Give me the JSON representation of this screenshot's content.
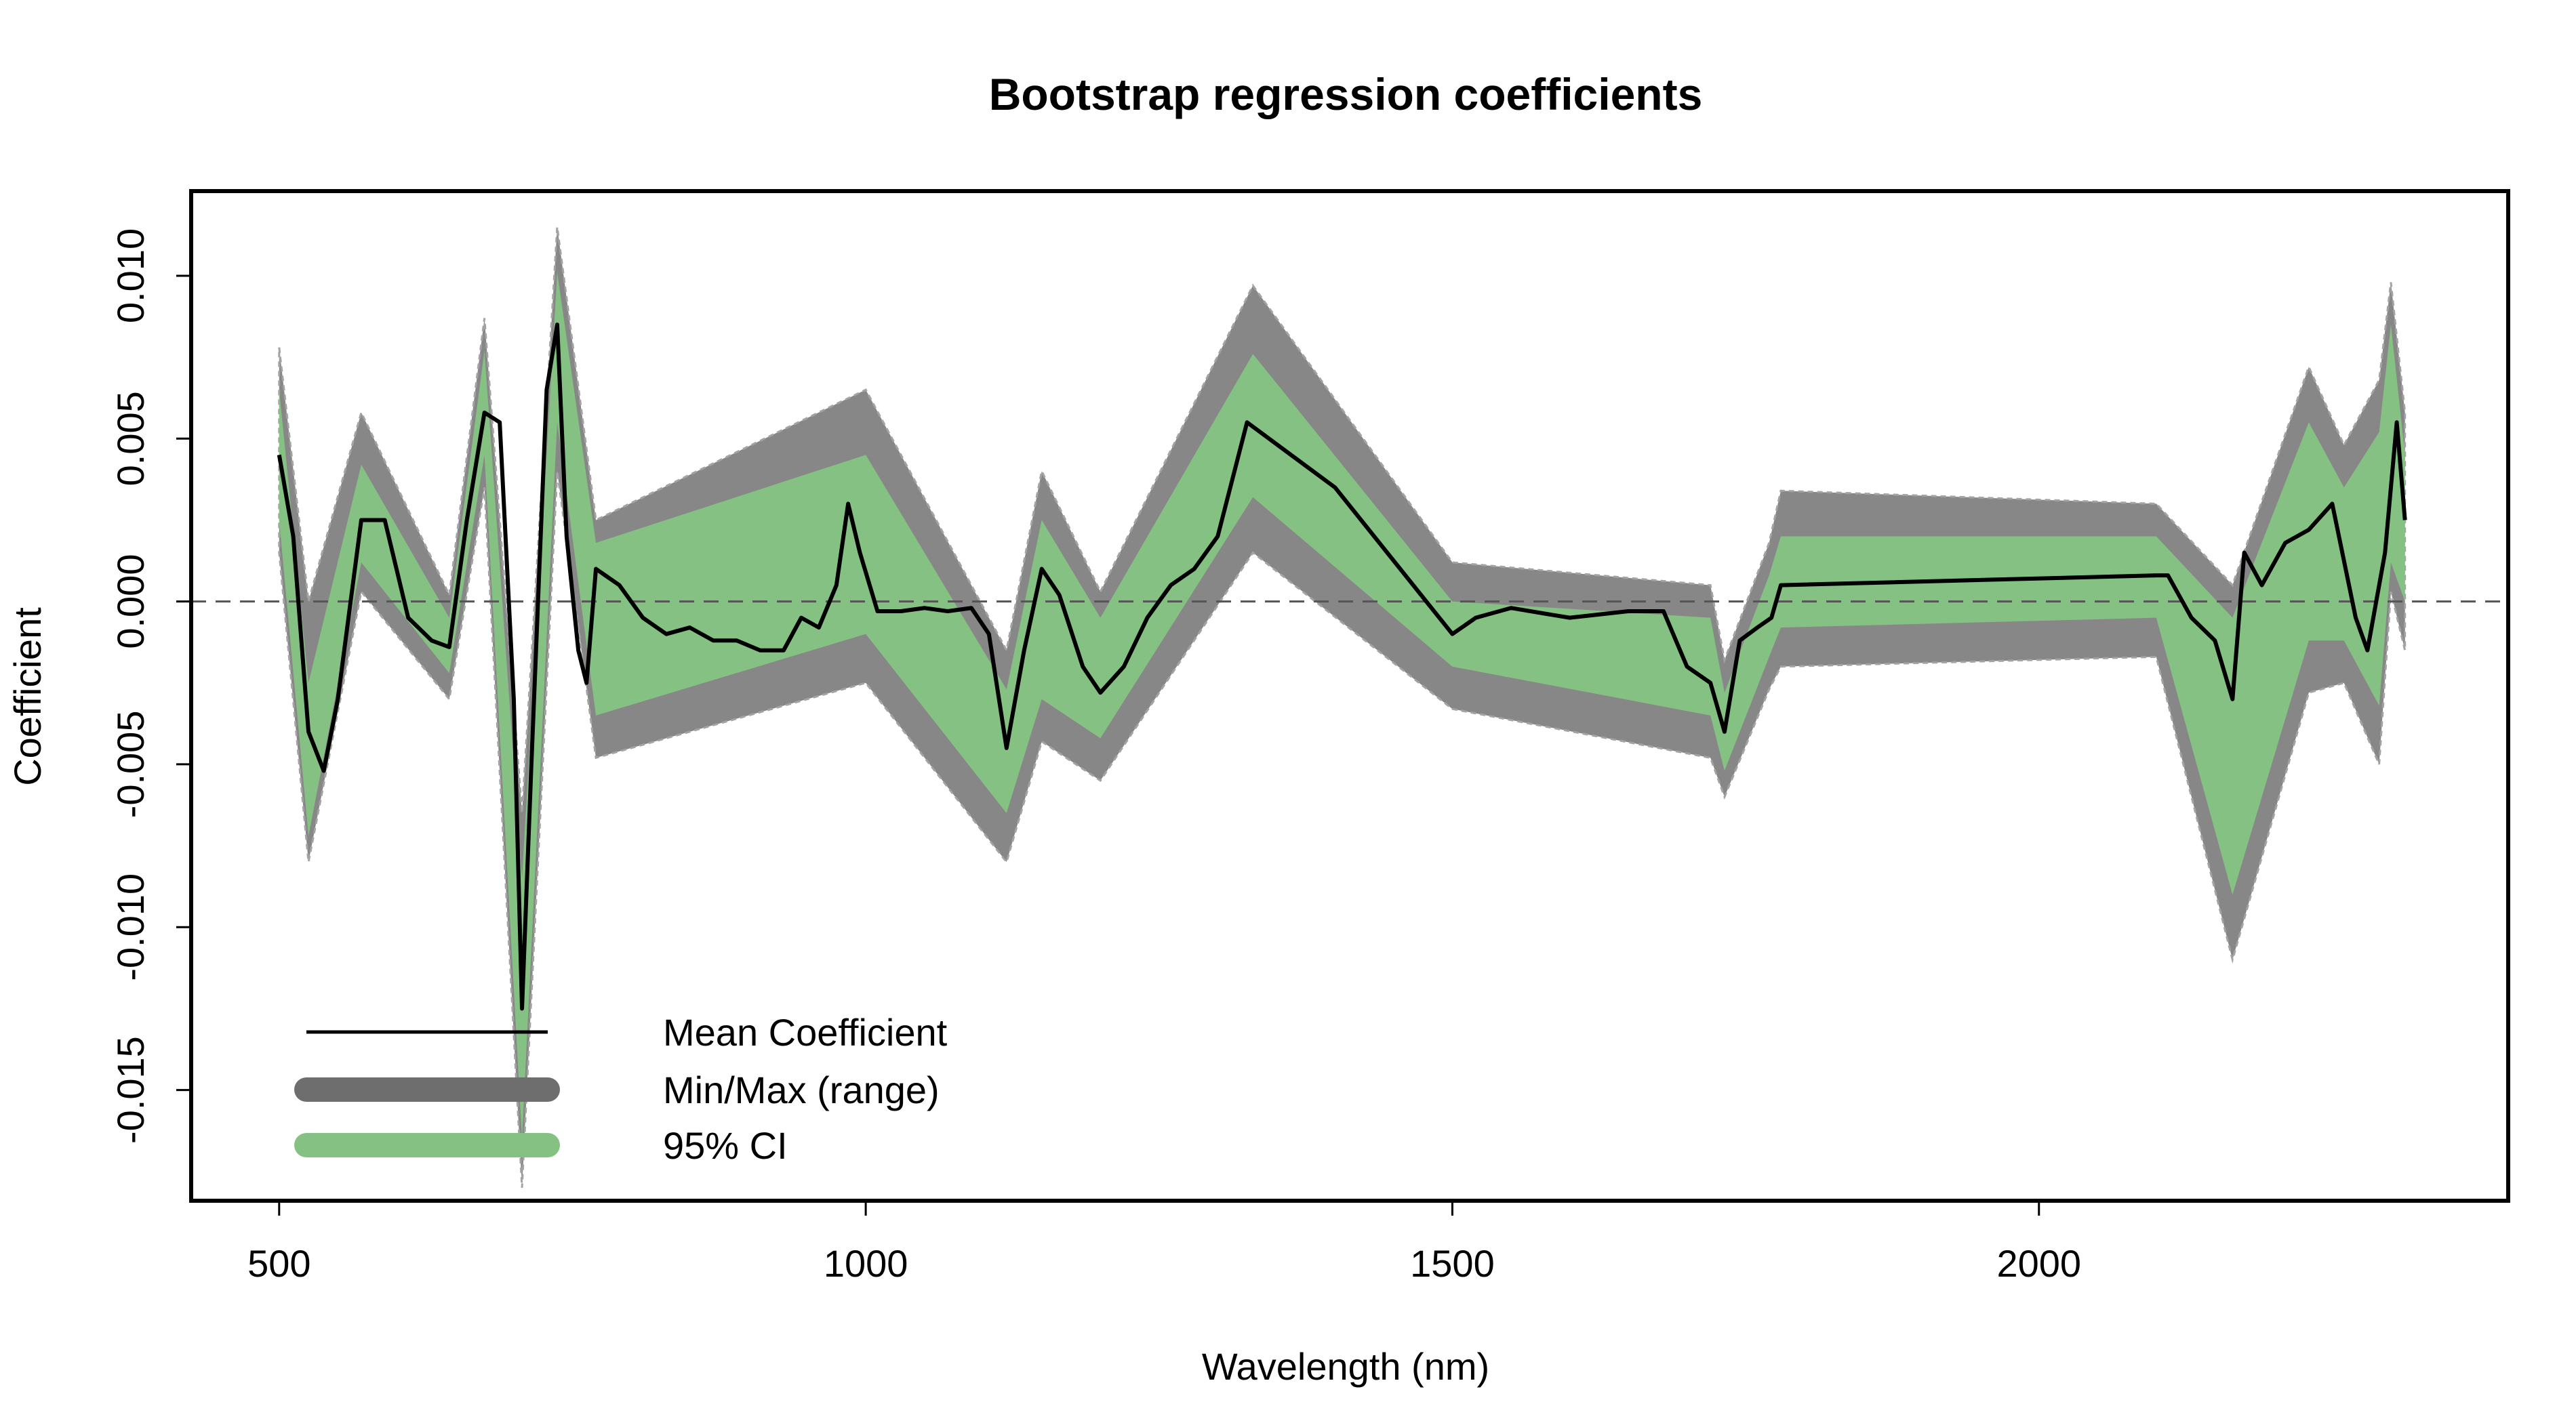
{
  "chart_data": {
    "type": "area",
    "title": "Bootstrap regression coefficients",
    "xlabel": "Wavelength (nm)",
    "ylabel": "Coefficient",
    "xlim": [
      425,
      2400
    ],
    "ylim": [
      -0.0184,
      0.0126
    ],
    "x_ticks": [
      500,
      1000,
      1500,
      2000
    ],
    "x_tick_labels": [
      "500",
      "1000",
      "1500",
      "2000"
    ],
    "y_ticks": [
      -0.015,
      -0.01,
      -0.005,
      0.0,
      0.005,
      0.01
    ],
    "y_tick_labels": [
      "-0.015",
      "-0.010",
      "-0.005",
      "0.000",
      "0.005",
      "0.010"
    ],
    "reference_line": {
      "y": 0,
      "style": "dashed"
    },
    "grid": false,
    "legend_position": "bottom-left",
    "colors": {
      "mean": "#000000",
      "range": "#878787",
      "range_edge": "#a3a3a3",
      "ci": "#86c184",
      "legend_range": "#6e6e6e"
    },
    "series": [
      {
        "name": "Mean Coefficient",
        "kind": "line",
        "x": [
          500,
          512,
          525,
          538,
          550,
          570,
          590,
          610,
          630,
          645,
          660,
          675,
          688,
          700,
          707,
          715,
          728,
          737,
          745,
          755,
          762,
          770,
          790,
          810,
          830,
          850,
          870,
          890,
          910,
          930,
          945,
          960,
          975,
          985,
          995,
          1010,
          1030,
          1050,
          1070,
          1090,
          1105,
          1120,
          1135,
          1150,
          1165,
          1185,
          1200,
          1220,
          1240,
          1260,
          1280,
          1300,
          1325,
          1400,
          1500,
          1520,
          1550,
          1600,
          1650,
          1680,
          1700,
          1720,
          1732,
          1745,
          1760,
          1772,
          1780,
          2100,
          2110,
          2130,
          2150,
          2165,
          2175,
          2190,
          2210,
          2230,
          2250,
          2270,
          2280,
          2295,
          2305,
          2312
        ],
        "y": [
          0.0045,
          0.002,
          -0.004,
          -0.0052,
          -0.003,
          0.0025,
          0.0025,
          -0.0005,
          -0.0012,
          -0.0014,
          0.0025,
          0.0058,
          0.0055,
          -0.003,
          -0.0125,
          -0.005,
          0.0065,
          0.0085,
          0.002,
          -0.0015,
          -0.0025,
          0.001,
          0.0005,
          -0.0005,
          -0.001,
          -0.0008,
          -0.0012,
          -0.0012,
          -0.0015,
          -0.0015,
          -0.0005,
          -0.0008,
          0.0005,
          0.003,
          0.0015,
          -0.0003,
          -0.0003,
          -0.0002,
          -0.0003,
          -0.0002,
          -0.001,
          -0.0045,
          -0.0015,
          0.001,
          0.0002,
          -0.002,
          -0.0028,
          -0.002,
          -0.0005,
          0.0005,
          0.001,
          0.002,
          0.0055,
          0.0035,
          -0.001,
          -0.0005,
          -0.0002,
          -0.0005,
          -0.0003,
          -0.0003,
          -0.002,
          -0.0025,
          -0.004,
          -0.0012,
          -0.0008,
          -0.0005,
          0.0005,
          0.0008,
          0.0008,
          -0.0005,
          -0.0012,
          -0.003,
          0.0015,
          0.0005,
          0.0018,
          0.0022,
          0.003,
          -0.0005,
          -0.0015,
          0.0015,
          0.0055,
          0.0025
        ]
      },
      {
        "name": "Min/Max (range)",
        "kind": "band",
        "x": [
          500,
          525,
          570,
          645,
          675,
          707,
          737,
          770,
          1000,
          1120,
          1150,
          1200,
          1330,
          1500,
          1720,
          1732,
          1770,
          1780,
          2100,
          2165,
          2230,
          2260,
          2290,
          2300,
          2312
        ],
        "upper": [
          0.0078,
          0.0,
          0.0058,
          0.0002,
          0.0087,
          -0.0065,
          0.0115,
          0.0025,
          0.0065,
          -0.0015,
          0.004,
          0.0003,
          0.0097,
          0.0012,
          0.0005,
          -0.0018,
          0.0018,
          0.0034,
          0.003,
          0.0005,
          0.0072,
          0.0048,
          0.0068,
          0.0098,
          0.0058
        ],
        "lower": [
          0.0015,
          -0.008,
          0.0003,
          -0.003,
          0.0035,
          -0.018,
          0.004,
          -0.0048,
          -0.0025,
          -0.008,
          -0.0043,
          -0.0055,
          0.0015,
          -0.0033,
          -0.0048,
          -0.006,
          -0.0027,
          -0.002,
          -0.0017,
          -0.011,
          -0.0028,
          -0.0025,
          -0.005,
          0.0003,
          -0.0015
        ]
      },
      {
        "name": "95% CI",
        "kind": "band",
        "x": [
          500,
          525,
          570,
          645,
          675,
          707,
          737,
          770,
          1000,
          1120,
          1150,
          1200,
          1330,
          1500,
          1720,
          1732,
          1770,
          1780,
          2100,
          2165,
          2230,
          2260,
          2290,
          2300,
          2312
        ],
        "upper": [
          0.0065,
          -0.0025,
          0.0042,
          -0.0005,
          0.0077,
          -0.0085,
          0.0101,
          0.0018,
          0.0045,
          -0.0027,
          0.0025,
          -0.0005,
          0.0076,
          0.0,
          -0.0005,
          -0.0028,
          0.0008,
          0.002,
          0.002,
          -0.0005,
          0.0055,
          0.0035,
          0.0052,
          0.0085,
          0.0045
        ],
        "lower": [
          0.0025,
          -0.0072,
          0.0012,
          -0.0022,
          0.0045,
          -0.0165,
          0.0055,
          -0.0035,
          -0.001,
          -0.0065,
          -0.003,
          -0.0042,
          0.0032,
          -0.002,
          -0.0035,
          -0.0052,
          -0.0017,
          -0.0008,
          -0.0005,
          -0.009,
          -0.0012,
          -0.0012,
          -0.0032,
          0.0012,
          0.0
        ]
      }
    ],
    "legend": [
      "Mean Coefficient",
      "Min/Max (range)",
      "95% CI"
    ]
  }
}
